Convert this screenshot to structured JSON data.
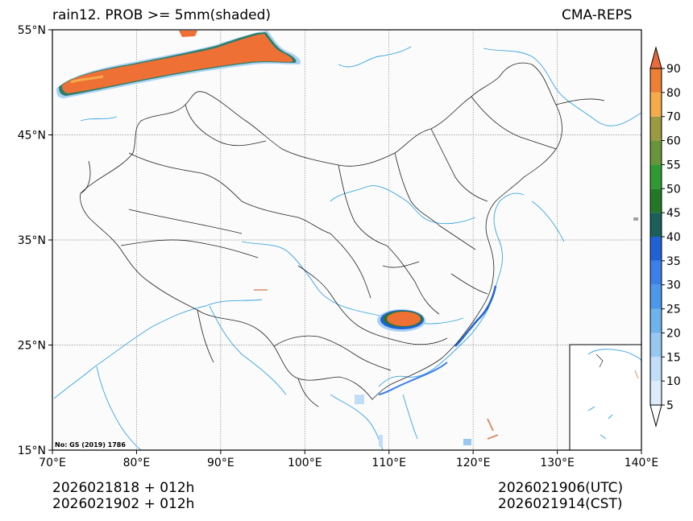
{
  "title_left": "rain12. PROB >= 5mm(shaded)",
  "title_right": "CMA-REPS",
  "approval": "No: GS (2019) 1786",
  "footer": {
    "left_line1": "2026021818  +  012h",
    "left_line2": "2026021902  +  012h",
    "right_line1": "2026021906(UTC)",
    "right_line2": "2026021914(CST)"
  },
  "map": {
    "lon_range": [
      70,
      140
    ],
    "lat_range": [
      15,
      55
    ],
    "lon_ticks": [
      "70°E",
      "80°E",
      "90°E",
      "100°E",
      "110°E",
      "120°E",
      "130°E",
      "140°E"
    ],
    "lat_ticks": [
      "15°N",
      "25°N",
      "35°N",
      "45°N",
      "55°N"
    ],
    "gridlines": true,
    "inset": "south-china-sea (bottom-right)"
  },
  "colorbar": {
    "levels": [
      "5",
      "10",
      "15",
      "20",
      "25",
      "30",
      "35",
      "40",
      "45",
      "50",
      "55",
      "60",
      "70",
      "80",
      "90"
    ],
    "colors": [
      "#dcecfb",
      "#c2ddf7",
      "#98c8f1",
      "#6fb3ec",
      "#4c98ea",
      "#3b7fe9",
      "#1f62d6",
      "#1a5f5a",
      "#237828",
      "#2f9a33",
      "#68943a",
      "#9a9a40",
      "#f5ab4a",
      "#ee7f35",
      "#e96b3a"
    ],
    "extend": "both"
  },
  "colors": {
    "rivers": "#3aa5e0",
    "borders": "#222222",
    "precip_high": "#ee7035",
    "precip_low": "#a9d2f2"
  }
}
